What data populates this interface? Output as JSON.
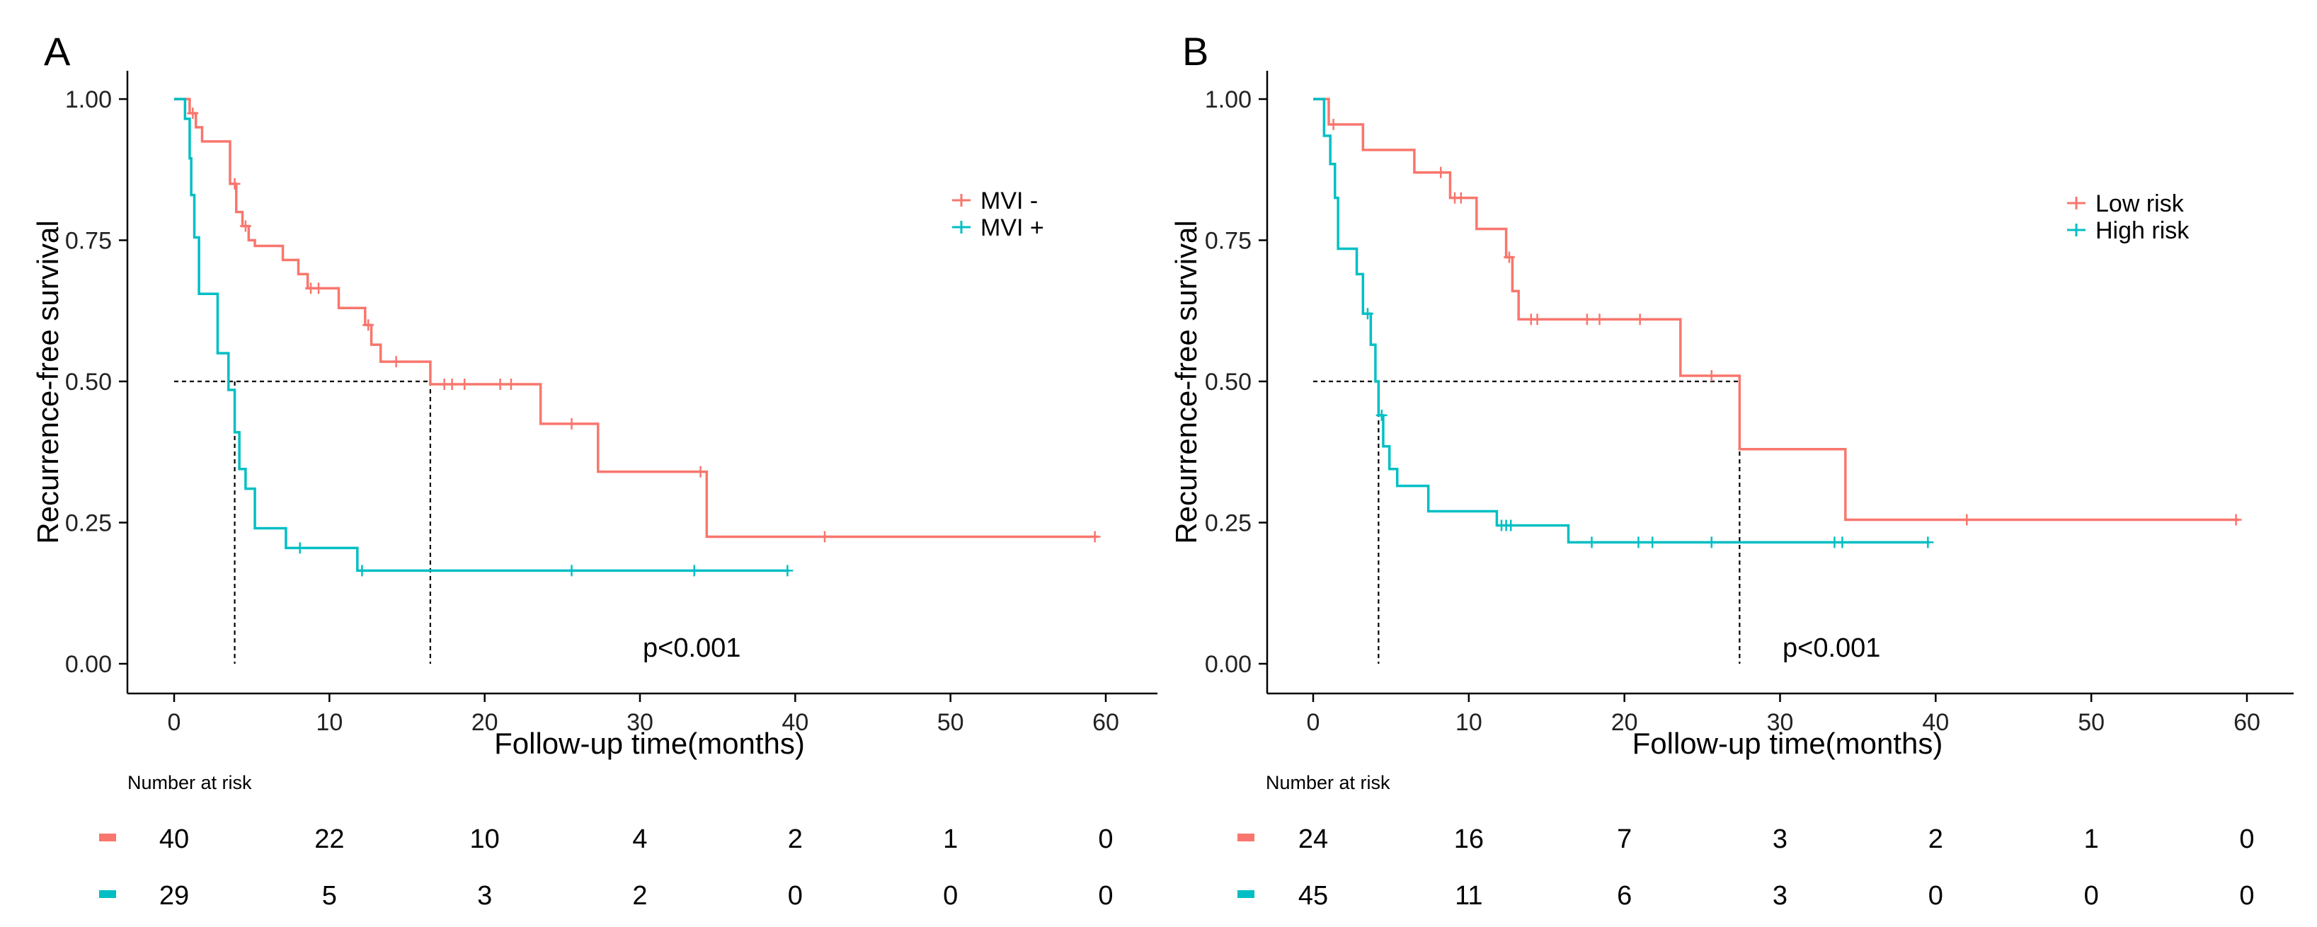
{
  "chart_data": [
    {
      "type": "line",
      "subtype": "kaplan-meier",
      "panel_label": "A",
      "ylabel": "Recurrence-free survival",
      "xlabel": "Follow-up time(months)",
      "xlim": [
        0,
        60
      ],
      "ylim": [
        0,
        1
      ],
      "xticks": [
        0,
        10,
        20,
        30,
        40,
        50,
        60
      ],
      "yticks": [
        "0.00",
        "0.25",
        "0.50",
        "0.75",
        "1.00"
      ],
      "legend_position": "top-right",
      "p_value": "p<0.001",
      "median_line": 0.5,
      "series": [
        {
          "name": "MVI -",
          "color": "#F8766D",
          "median": 16.5,
          "steps": [
            [
              0,
              1.0
            ],
            [
              1.0,
              0.975
            ],
            [
              1.4,
              0.95
            ],
            [
              1.8,
              0.925
            ],
            [
              3.6,
              0.85
            ],
            [
              4.0,
              0.8
            ],
            [
              4.4,
              0.775
            ],
            [
              4.8,
              0.75
            ],
            [
              5.2,
              0.74
            ],
            [
              7.0,
              0.715
            ],
            [
              8.0,
              0.69
            ],
            [
              8.6,
              0.665
            ],
            [
              10.6,
              0.63
            ],
            [
              12.3,
              0.6
            ],
            [
              12.7,
              0.565
            ],
            [
              13.3,
              0.535
            ],
            [
              16.5,
              0.495
            ],
            [
              23.6,
              0.425
            ],
            [
              27.3,
              0.34
            ],
            [
              34.3,
              0.225
            ],
            [
              59.5,
              0.225
            ]
          ],
          "censor_times": [
            1.2,
            3.9,
            4.6,
            8.8,
            9.3,
            12.5,
            14.3,
            17.4,
            17.9,
            18.7,
            21.0,
            21.7,
            25.6,
            33.9,
            41.9,
            59.3
          ],
          "at_risk": [
            40,
            22,
            10,
            4,
            2,
            1,
            0
          ]
        },
        {
          "name": "MVI +",
          "color": "#00BFC4",
          "median": 3.9,
          "steps": [
            [
              0,
              1.0
            ],
            [
              0.7,
              0.965
            ],
            [
              1.0,
              0.895
            ],
            [
              1.1,
              0.83
            ],
            [
              1.3,
              0.755
            ],
            [
              1.6,
              0.655
            ],
            [
              2.8,
              0.55
            ],
            [
              3.5,
              0.485
            ],
            [
              3.9,
              0.41
            ],
            [
              4.2,
              0.345
            ],
            [
              4.6,
              0.31
            ],
            [
              5.2,
              0.24
            ],
            [
              7.2,
              0.205
            ],
            [
              11.8,
              0.165
            ],
            [
              39.6,
              0.165
            ]
          ],
          "censor_times": [
            8.1,
            12.1,
            25.6,
            33.5,
            39.5
          ],
          "at_risk": [
            29,
            5,
            3,
            2,
            0,
            0,
            0
          ]
        }
      ],
      "risk_table_title": "Number at risk"
    },
    {
      "type": "line",
      "subtype": "kaplan-meier",
      "panel_label": "B",
      "ylabel": "Recurrence-free survival",
      "xlabel": "Follow-up time(months)",
      "xlim": [
        0,
        60
      ],
      "ylim": [
        0,
        1
      ],
      "xticks": [
        0,
        10,
        20,
        30,
        40,
        50,
        60
      ],
      "yticks": [
        "0.00",
        "0.25",
        "0.50",
        "0.75",
        "1.00"
      ],
      "legend_position": "top-right",
      "p_value": "p<0.001",
      "median_line": 0.5,
      "series": [
        {
          "name": "Low risk",
          "color": "#F8766D",
          "median": 27.4,
          "steps": [
            [
              0,
              1.0
            ],
            [
              1.0,
              0.955
            ],
            [
              3.2,
              0.91
            ],
            [
              6.5,
              0.87
            ],
            [
              8.8,
              0.825
            ],
            [
              10.5,
              0.77
            ],
            [
              12.4,
              0.72
            ],
            [
              12.8,
              0.66
            ],
            [
              13.2,
              0.61
            ],
            [
              23.6,
              0.51
            ],
            [
              27.4,
              0.38
            ],
            [
              34.2,
              0.255
            ],
            [
              59.5,
              0.255
            ]
          ],
          "censor_times": [
            1.3,
            8.2,
            9.1,
            9.5,
            12.6,
            14.0,
            14.4,
            17.6,
            18.4,
            21.0,
            25.6,
            42.0,
            59.3
          ],
          "at_risk": [
            24,
            16,
            7,
            3,
            2,
            1,
            0
          ]
        },
        {
          "name": "High risk",
          "color": "#00BFC4",
          "median": 4.2,
          "steps": [
            [
              0,
              1.0
            ],
            [
              0.7,
              0.935
            ],
            [
              1.1,
              0.885
            ],
            [
              1.4,
              0.825
            ],
            [
              1.6,
              0.735
            ],
            [
              2.8,
              0.69
            ],
            [
              3.2,
              0.62
            ],
            [
              3.7,
              0.565
            ],
            [
              4.0,
              0.5
            ],
            [
              4.2,
              0.44
            ],
            [
              4.5,
              0.385
            ],
            [
              4.9,
              0.345
            ],
            [
              5.4,
              0.315
            ],
            [
              7.4,
              0.27
            ],
            [
              11.8,
              0.245
            ],
            [
              16.4,
              0.215
            ],
            [
              39.6,
              0.215
            ]
          ],
          "censor_times": [
            3.5,
            4.4,
            12.1,
            12.4,
            12.7,
            17.9,
            20.9,
            21.8,
            25.6,
            33.5,
            34.0,
            39.5
          ],
          "at_risk": [
            45,
            11,
            6,
            3,
            0,
            0,
            0
          ]
        }
      ],
      "risk_table_title": "Number at risk"
    }
  ]
}
